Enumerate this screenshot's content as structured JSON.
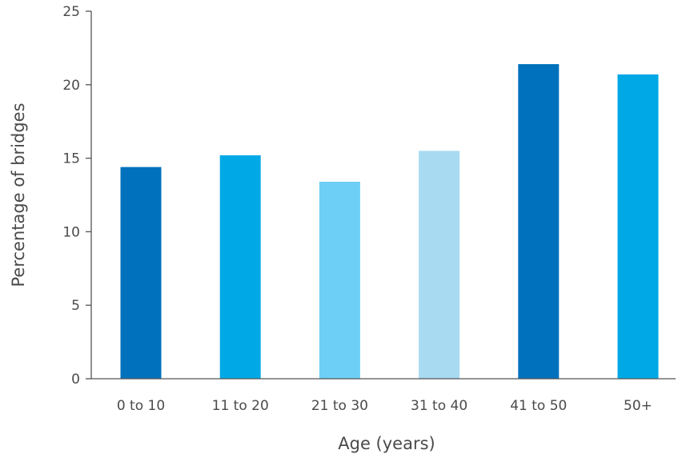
{
  "chart_data": {
    "type": "bar",
    "categories": [
      "0 to 10",
      "11 to 20",
      "21 to 30",
      "31 to 40",
      "41 to 50",
      "50+"
    ],
    "values": [
      14.4,
      15.2,
      13.4,
      15.5,
      21.4,
      20.7
    ],
    "bar_colors": [
      "#0071bc",
      "#00a9e6",
      "#6dcff6",
      "#a8daf2",
      "#0071bc",
      "#00a9e6"
    ],
    "title": "",
    "xlabel": "Age (years)",
    "ylabel": "Percentage of bridges",
    "ylim": [
      0,
      25
    ],
    "yticks": [
      "0",
      "5",
      "10",
      "15",
      "20",
      "25"
    ],
    "grid": false,
    "legend": "none"
  }
}
